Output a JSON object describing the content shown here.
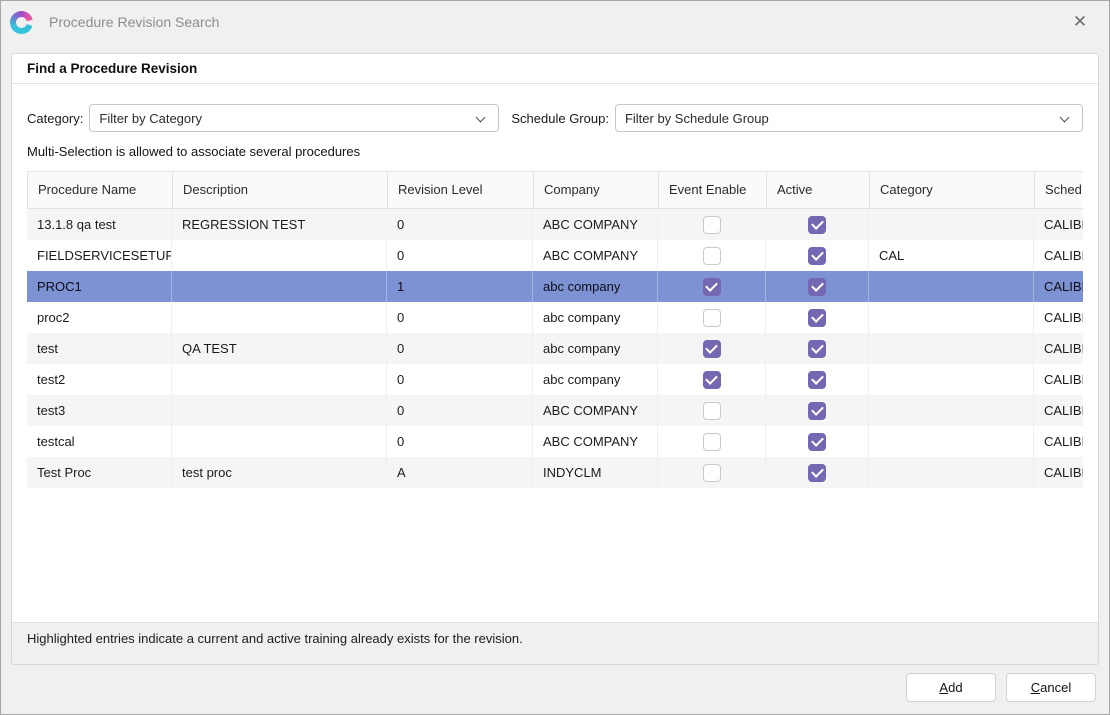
{
  "window": {
    "title": "Procedure Revision Search",
    "close_glyph": "✕"
  },
  "panel": {
    "header": "Find a Procedure Revision"
  },
  "filters": {
    "category_label": "Category:",
    "category_value": "Filter by Category",
    "schedule_group_label": "Schedule Group:",
    "schedule_group_value": "Filter by Schedule Group"
  },
  "hint": "Multi-Selection is allowed to associate several procedures",
  "table": {
    "columns": [
      "Procedure Name",
      "Description",
      "Revision Level",
      "Company",
      "Event Enable",
      "Active",
      "Category",
      "Sched."
    ],
    "rows": [
      {
        "procedure_name": "13.1.8 qa test",
        "description": "REGRESSION TEST",
        "revision_level": "0",
        "company": "ABC COMPANY",
        "event_enable": false,
        "active": true,
        "category": "",
        "sched": "CALIBR",
        "selected": false
      },
      {
        "procedure_name": "FIELDSERVICESETUP",
        "description": "",
        "revision_level": "0",
        "company": "ABC COMPANY",
        "event_enable": false,
        "active": true,
        "category": "CAL",
        "sched": "CALIBR",
        "selected": false
      },
      {
        "procedure_name": "PROC1",
        "description": "",
        "revision_level": "1",
        "company": "abc company",
        "event_enable": true,
        "active": true,
        "category": "",
        "sched": "CALIBR",
        "selected": true
      },
      {
        "procedure_name": "proc2",
        "description": "",
        "revision_level": "0",
        "company": "abc company",
        "event_enable": false,
        "active": true,
        "category": "",
        "sched": "CALIBR",
        "selected": false
      },
      {
        "procedure_name": "test",
        "description": "QA TEST",
        "revision_level": "0",
        "company": "abc company",
        "event_enable": true,
        "active": true,
        "category": "",
        "sched": "CALIBR",
        "selected": false
      },
      {
        "procedure_name": "test2",
        "description": "",
        "revision_level": "0",
        "company": "abc company",
        "event_enable": true,
        "active": true,
        "category": "",
        "sched": "CALIBR",
        "selected": false
      },
      {
        "procedure_name": "test3",
        "description": "",
        "revision_level": "0",
        "company": "ABC COMPANY",
        "event_enable": false,
        "active": true,
        "category": "",
        "sched": "CALIBR",
        "selected": false
      },
      {
        "procedure_name": "testcal",
        "description": "",
        "revision_level": "0",
        "company": "ABC COMPANY",
        "event_enable": false,
        "active": true,
        "category": "",
        "sched": "CALIBR",
        "selected": false
      },
      {
        "procedure_name": "Test Proc",
        "description": "test proc",
        "revision_level": "A",
        "company": "INDYCLM",
        "event_enable": false,
        "active": true,
        "category": "",
        "sched": "CALIBR",
        "selected": false
      }
    ]
  },
  "footer_note": "Highlighted entries indicate a current and active training already exists for the revision.",
  "buttons": {
    "add": {
      "accel": "A",
      "rest": "dd"
    },
    "cancel": {
      "accel": "C",
      "rest": "ancel"
    }
  },
  "colors": {
    "selected_row": "#7D92D3",
    "checkbox_checked": "#7667B3",
    "alt_row": "#F5F5F5"
  }
}
